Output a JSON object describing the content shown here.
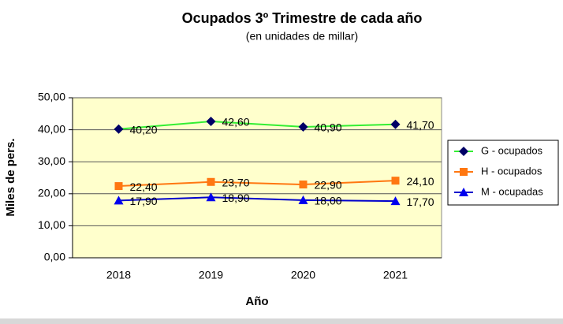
{
  "chart_data": {
    "type": "line",
    "title": "Ocupados 3º Trimestre de cada año",
    "subtitle": "(en unidades de millar)",
    "x_label": "Año",
    "y_label": "Miles de pers.",
    "categories": [
      "2018",
      "2019",
      "2020",
      "2021"
    ],
    "series": [
      {
        "name": "G - ocupados",
        "color": "#33ee33",
        "marker": "diamond",
        "marker_color": "#000066",
        "values": [
          40.2,
          42.6,
          40.9,
          41.7
        ],
        "value_labels": [
          "40,20",
          "42,60",
          "40,90",
          "41,70"
        ]
      },
      {
        "name": "H - ocupados",
        "color": "#ff7711",
        "marker": "square",
        "marker_color": "#ff7711",
        "values": [
          22.4,
          23.7,
          22.9,
          24.1
        ],
        "value_labels": [
          "22,40",
          "23,70",
          "22,90",
          "24,10"
        ]
      },
      {
        "name": "M - ocupadas",
        "color": "#0000cc",
        "marker": "triangle",
        "marker_color": "#0000ee",
        "values": [
          17.9,
          18.9,
          18.0,
          17.7
        ],
        "value_labels": [
          "17,90",
          "18,90",
          "18,00",
          "17,70"
        ]
      }
    ],
    "ylim": [
      0,
      50
    ],
    "yticks": [
      {
        "value": 0,
        "label": "0,00"
      },
      {
        "value": 10,
        "label": "10,00"
      },
      {
        "value": 20,
        "label": "20,00"
      },
      {
        "value": 30,
        "label": "30,00"
      },
      {
        "value": 40,
        "label": "40,00"
      },
      {
        "value": 50,
        "label": "50,00"
      }
    ],
    "grid": true,
    "legend": "right",
    "plot_background": "#ffffcc"
  }
}
